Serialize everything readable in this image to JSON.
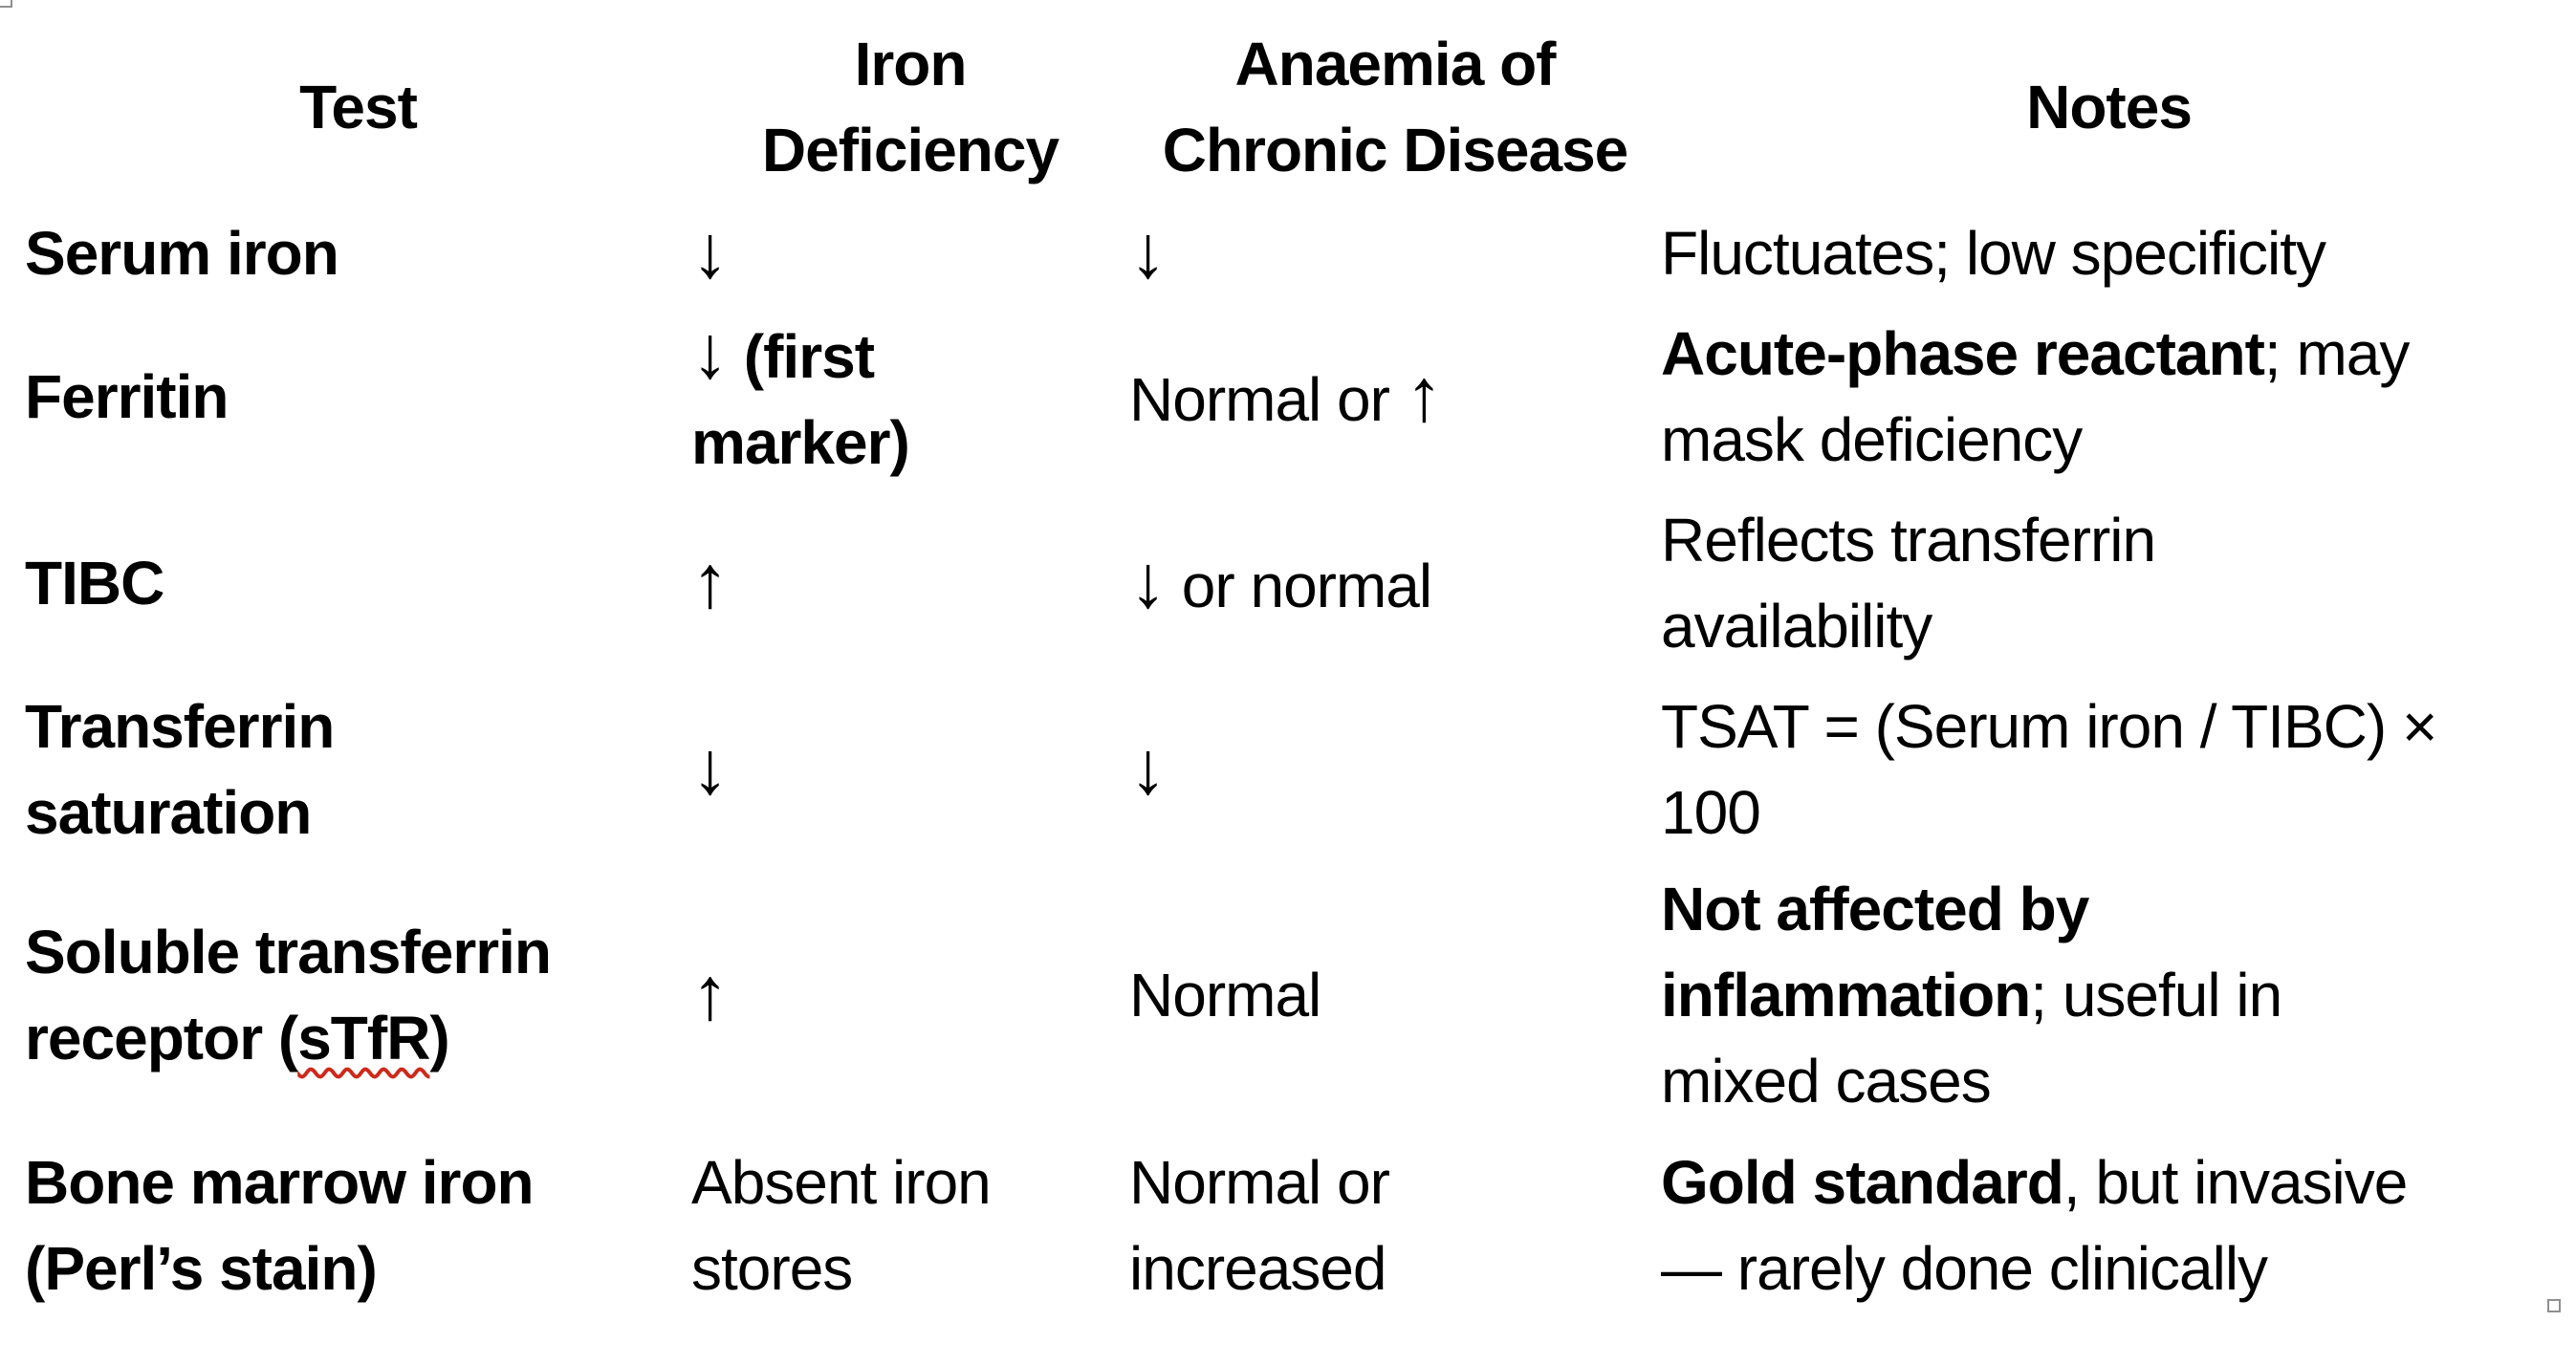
{
  "page": {
    "background_color": "#ffffff",
    "text_color": "#000000",
    "spellcheck_underline_color": "#cc2a1b",
    "selection_handle_border_color": "#8f8f8f"
  },
  "table": {
    "headers": [
      "Test",
      "Iron\nDeficiency",
      "Anaemia of\nChronic Disease",
      "Notes"
    ],
    "rows": [
      {
        "test": "Serum iron",
        "iron_deficiency_arrow": "↓",
        "acd_arrow": "↓",
        "notes_rest": "Fluctuates; low specificity"
      },
      {
        "test": "Ferritin",
        "iron_deficiency_arrow": "↓",
        "iron_deficiency_bold": " (first\nmarker)",
        "acd_text": "Normal or ",
        "acd_arrow": "↑",
        "notes_bold": "Acute-phase reactant",
        "notes_rest": "; may\nmask deficiency"
      },
      {
        "test": "TIBC",
        "iron_deficiency_arrow": "↑",
        "acd_arrow": "↓",
        "acd_text": " or normal",
        "notes_rest": "Reflects transferrin\navailability"
      },
      {
        "test": "Transferrin\nsaturation",
        "iron_deficiency_arrow": "↓",
        "acd_arrow": "↓",
        "notes_rest": "TSAT = (Serum iron / TIBC) ×\n100"
      },
      {
        "test_pre": "Soluble transferrin\nreceptor (",
        "test_misspelled": "sTfR",
        "test_post": ")",
        "iron_deficiency_arrow": "↑",
        "acd_text": "Normal",
        "notes_bold": "Not affected by\ninflammation",
        "notes_rest": "; useful in\nmixed cases"
      },
      {
        "test": "Bone marrow iron\n(Perl’s stain)",
        "iron_deficiency_text": "Absent iron\nstores",
        "acd_text": "Normal or\nincreased",
        "notes_bold": "Gold standard",
        "notes_rest": ", but invasive\n— rarely done clinically"
      }
    ]
  },
  "editor": {
    "selection_handles": [
      "top-left",
      "bottom-right"
    ]
  }
}
